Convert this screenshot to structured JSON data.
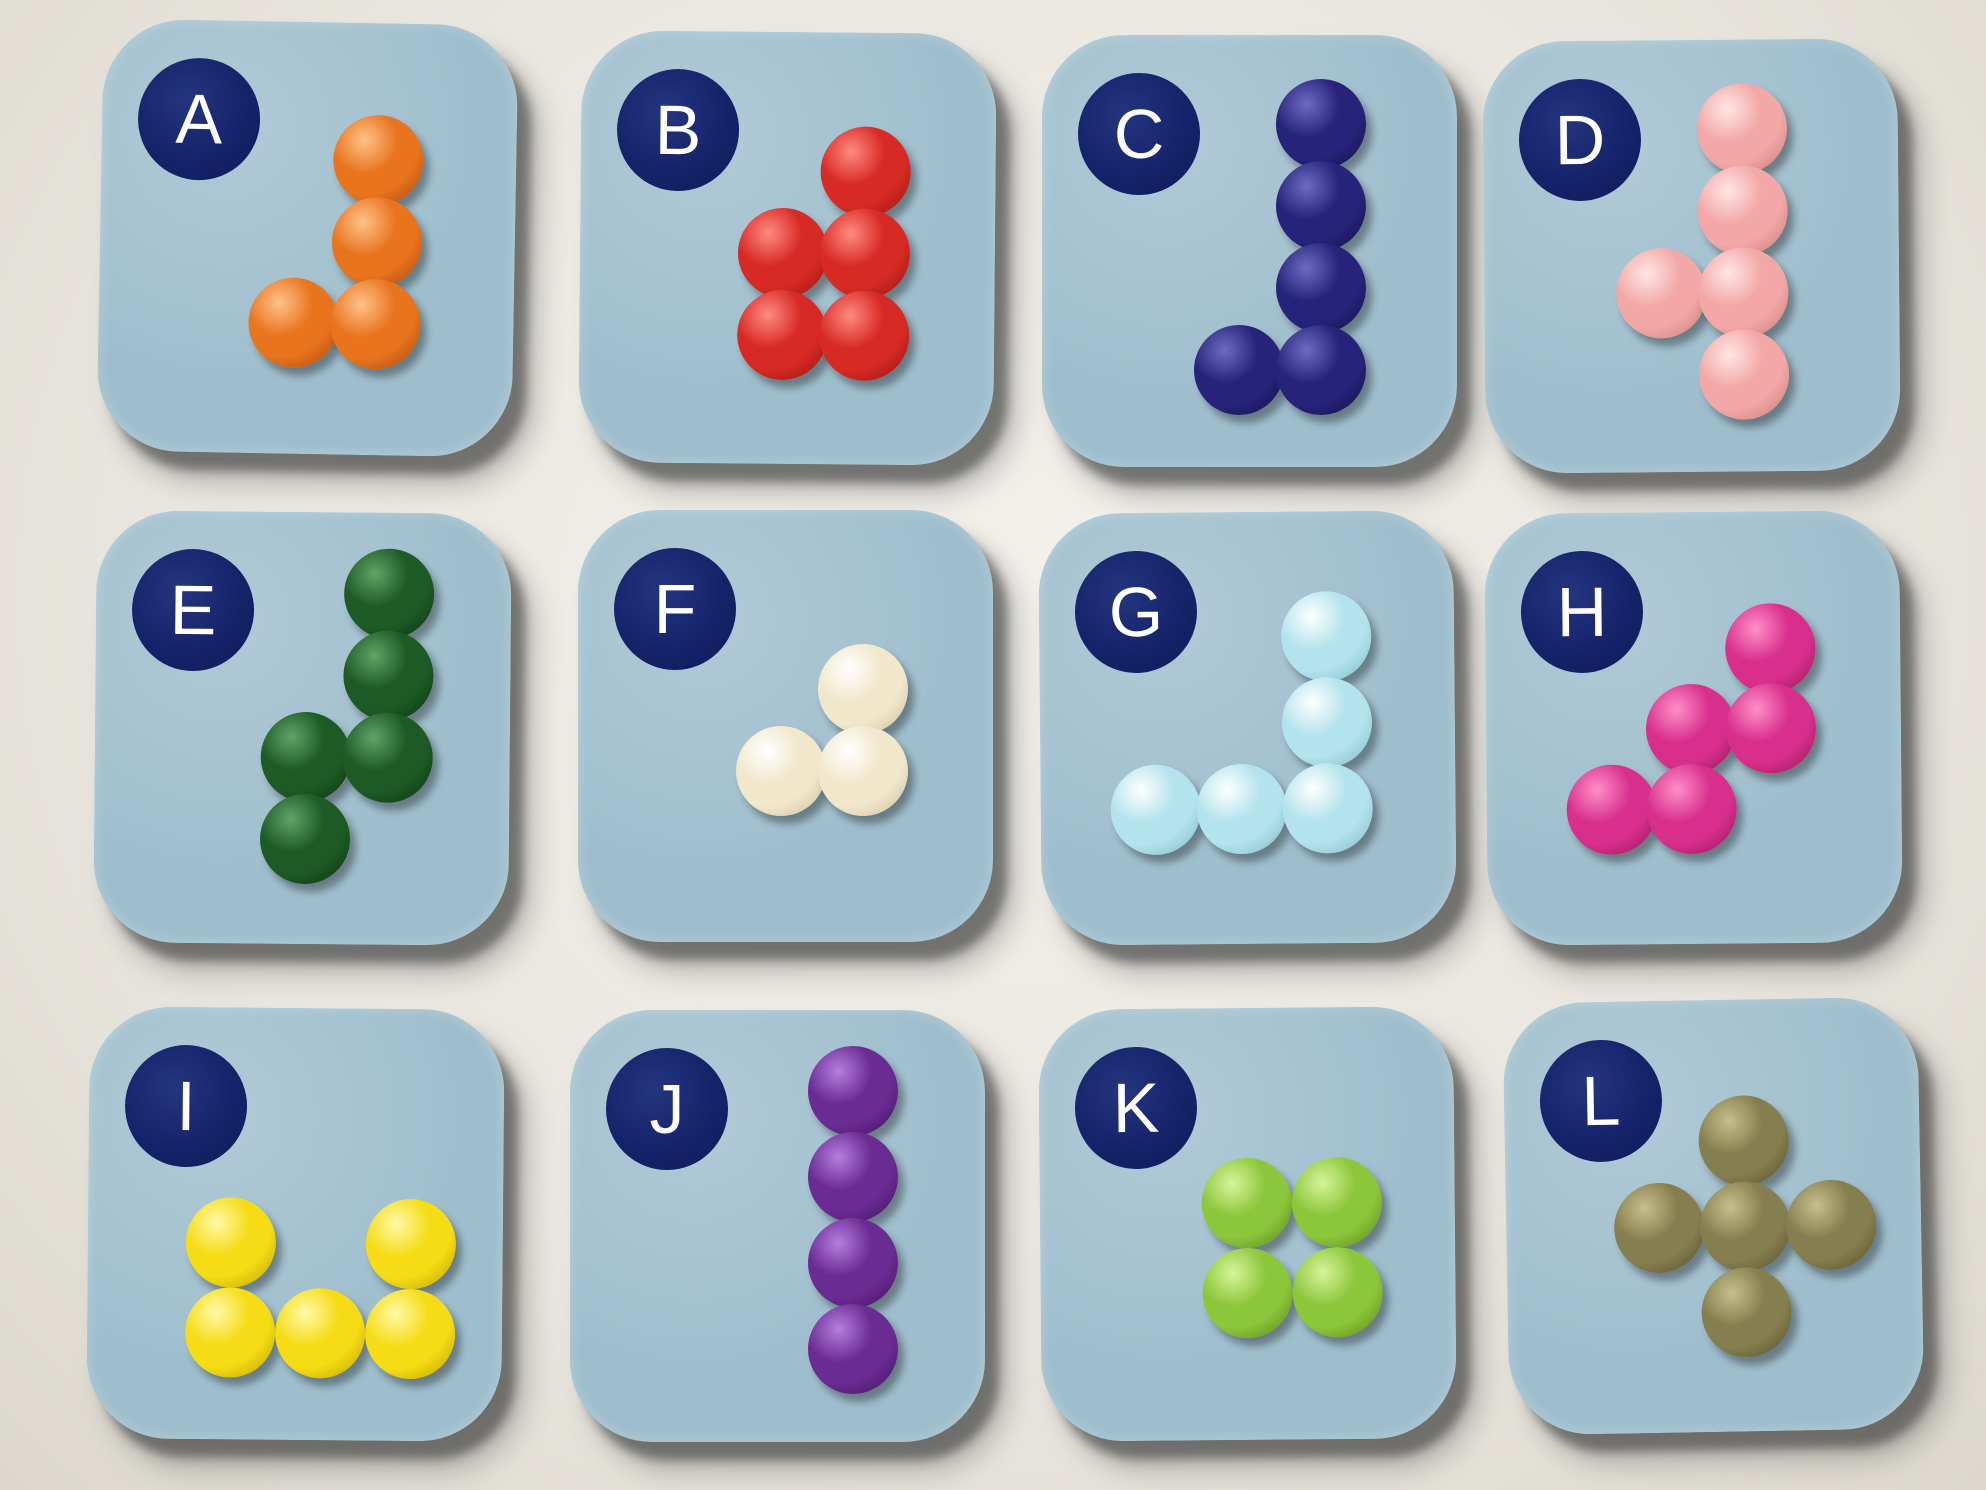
{
  "pieces": [
    {
      "label": "A",
      "name": "orange",
      "color": "#e8741e",
      "highlight": "#ffc28a",
      "shade": "#a3420b",
      "cells": [
        [
          1,
          0
        ],
        [
          1,
          1
        ],
        [
          0,
          2
        ],
        [
          1,
          2
        ]
      ]
    },
    {
      "label": "B",
      "name": "red",
      "color": "#d72a24",
      "highlight": "#ff8a80",
      "shade": "#8e1210",
      "cells": [
        [
          1,
          0
        ],
        [
          0,
          1
        ],
        [
          1,
          1
        ],
        [
          0,
          2
        ],
        [
          1,
          2
        ]
      ]
    },
    {
      "label": "C",
      "name": "navy",
      "color": "#27237a",
      "highlight": "#6f6bc4",
      "shade": "#120f45",
      "cells": [
        [
          1,
          0
        ],
        [
          1,
          1
        ],
        [
          1,
          2
        ],
        [
          0,
          3
        ],
        [
          1,
          3
        ]
      ]
    },
    {
      "label": "D",
      "name": "pink",
      "color": "#f2a8a6",
      "highlight": "#ffe6e4",
      "shade": "#c97572",
      "cells": [
        [
          1,
          0
        ],
        [
          1,
          1
        ],
        [
          0,
          2
        ],
        [
          1,
          2
        ],
        [
          1,
          3
        ]
      ]
    },
    {
      "label": "E",
      "name": "dark-green",
      "color": "#1d5a25",
      "highlight": "#5fa468",
      "shade": "#0b3010",
      "cells": [
        [
          1,
          0
        ],
        [
          1,
          1
        ],
        [
          0,
          2
        ],
        [
          1,
          2
        ],
        [
          0,
          3
        ]
      ]
    },
    {
      "label": "F",
      "name": "cream",
      "color": "#f1e7cb",
      "highlight": "#ffffff",
      "shade": "#c9bb94",
      "cells": [
        [
          1,
          0
        ],
        [
          0,
          1
        ],
        [
          1,
          1
        ]
      ]
    },
    {
      "label": "G",
      "name": "light-blue",
      "color": "#b3e3ec",
      "highlight": "#ffffff",
      "shade": "#78b5c2",
      "cells": [
        [
          2,
          0
        ],
        [
          2,
          1
        ],
        [
          0,
          2
        ],
        [
          1,
          2
        ],
        [
          2,
          2
        ]
      ]
    },
    {
      "label": "H",
      "name": "magenta",
      "color": "#d82f8c",
      "highlight": "#ff8fc8",
      "shade": "#8e1456",
      "cells": [
        [
          2,
          0
        ],
        [
          1,
          1
        ],
        [
          2,
          1
        ],
        [
          0,
          2
        ],
        [
          1,
          2
        ]
      ]
    },
    {
      "label": "I",
      "name": "yellow",
      "color": "#f5dc14",
      "highlight": "#fff9a8",
      "shade": "#b89a00",
      "cells": [
        [
          0,
          0
        ],
        [
          2,
          0
        ],
        [
          0,
          1
        ],
        [
          1,
          1
        ],
        [
          2,
          1
        ]
      ]
    },
    {
      "label": "J",
      "name": "purple",
      "color": "#6a2b92",
      "highlight": "#b57ee0",
      "shade": "#3c1159",
      "cells": [
        [
          0,
          0
        ],
        [
          0,
          1
        ],
        [
          0,
          2
        ],
        [
          0,
          3
        ]
      ]
    },
    {
      "label": "K",
      "name": "lime",
      "color": "#8cc63a",
      "highlight": "#d6f59b",
      "shade": "#558014",
      "cells": [
        [
          0,
          0
        ],
        [
          1,
          0
        ],
        [
          0,
          1
        ],
        [
          1,
          1
        ]
      ]
    },
    {
      "label": "L",
      "name": "olive",
      "color": "#857e4e",
      "highlight": "#c7c08d",
      "shade": "#514b26",
      "cells": [
        [
          1,
          0
        ],
        [
          0,
          1
        ],
        [
          1,
          1
        ],
        [
          2,
          1
        ],
        [
          1,
          2
        ]
      ]
    }
  ]
}
